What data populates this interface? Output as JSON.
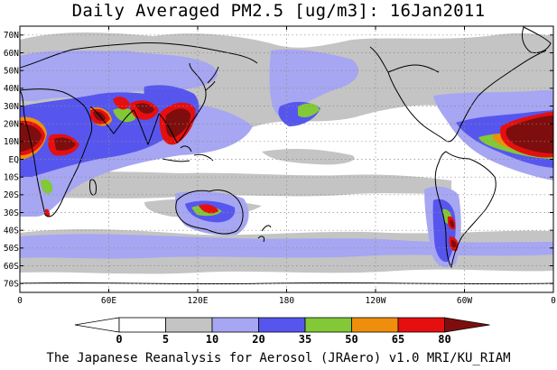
{
  "title": "Daily Averaged PM2.5 [ug/m3]: 16Jan2011",
  "lat_labels": [
    "70N",
    "60N",
    "50N",
    "40N",
    "30N",
    "20N",
    "10N",
    "EQ",
    "10S",
    "20S",
    "30S",
    "40S",
    "50S",
    "60S",
    "70S"
  ],
  "lat_values": [
    70,
    60,
    50,
    40,
    30,
    20,
    10,
    0,
    -10,
    -20,
    -30,
    -40,
    -50,
    -60,
    -70
  ],
  "lon_labels": [
    "0",
    "60E",
    "120E",
    "180",
    "120W",
    "60W",
    "0"
  ],
  "lon_values": [
    0,
    60,
    120,
    180,
    240,
    300,
    360
  ],
  "lat_range": [
    -75,
    75
  ],
  "lon_range": [
    0,
    360
  ],
  "colorbar": {
    "levels": [
      "0",
      "5",
      "10",
      "20",
      "35",
      "50",
      "65",
      "80"
    ],
    "colors": [
      "#ffffff",
      "#ffffff",
      "#c4c4c4",
      "#a6a6f2",
      "#5656ee",
      "#82c837",
      "#ef8e0d",
      "#e50f0f",
      "#7e0e0e"
    ]
  },
  "footer": "The Japanese Reanalysis for Aerosol (JRAero) v1.0 MRI/KU_RIAM"
}
